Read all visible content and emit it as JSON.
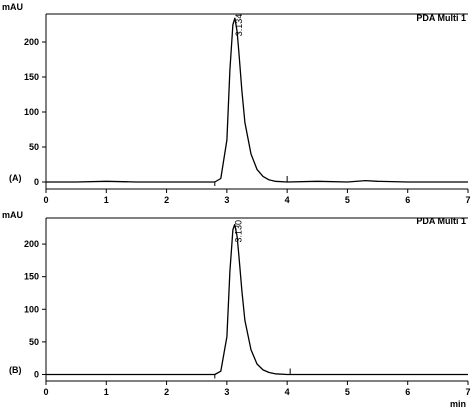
{
  "chart_data": [
    {
      "type": "line",
      "panel": "(A)",
      "detector": "PDA Multi 1",
      "ylabel": "mAU",
      "xlabel": "min",
      "xlim": [
        0,
        7
      ],
      "ylim": [
        -10,
        240
      ],
      "xticks": [
        "0",
        "1",
        "2",
        "3",
        "4",
        "5",
        "6",
        "7"
      ],
      "yticks": [
        "0",
        "50",
        "100",
        "150",
        "200"
      ],
      "peak": {
        "label": "3.134",
        "retention_time": 3.134,
        "height": 234
      },
      "x": [
        0,
        0.5,
        1,
        1.5,
        2,
        2.5,
        2.8,
        2.9,
        3.0,
        3.05,
        3.1,
        3.134,
        3.17,
        3.2,
        3.25,
        3.3,
        3.4,
        3.5,
        3.6,
        3.7,
        3.8,
        4.0,
        4.5,
        5.0,
        5.3,
        5.5,
        6.0,
        6.5,
        7.0
      ],
      "y": [
        0,
        0,
        1,
        0,
        0,
        0,
        0,
        5,
        60,
        160,
        225,
        234,
        215,
        185,
        130,
        85,
        40,
        18,
        8,
        3,
        1,
        0,
        1,
        0,
        2,
        1,
        0,
        0,
        0
      ]
    },
    {
      "type": "line",
      "panel": "(B)",
      "detector": "PDA Multi 1",
      "ylabel": "mAU",
      "xlabel": "min",
      "xlim": [
        0,
        7
      ],
      "ylim": [
        -10,
        240
      ],
      "xticks": [
        "0",
        "1",
        "2",
        "3",
        "4",
        "5",
        "6",
        "7"
      ],
      "yticks": [
        "0",
        "50",
        "100",
        "150",
        "200"
      ],
      "peak": {
        "label": "3.130",
        "retention_time": 3.13,
        "height": 230
      },
      "x": [
        0,
        0.5,
        1,
        1.5,
        2,
        2.5,
        2.8,
        2.9,
        3.0,
        3.05,
        3.1,
        3.13,
        3.17,
        3.2,
        3.25,
        3.3,
        3.4,
        3.5,
        3.6,
        3.7,
        3.8,
        4.0,
        4.5,
        5.0,
        5.5,
        6.0,
        6.5,
        7.0
      ],
      "y": [
        0,
        0,
        0,
        0,
        0,
        0,
        0,
        5,
        58,
        158,
        222,
        230,
        212,
        182,
        128,
        83,
        38,
        16,
        7,
        3,
        1,
        0,
        0,
        0,
        0,
        0,
        0,
        0
      ]
    }
  ]
}
